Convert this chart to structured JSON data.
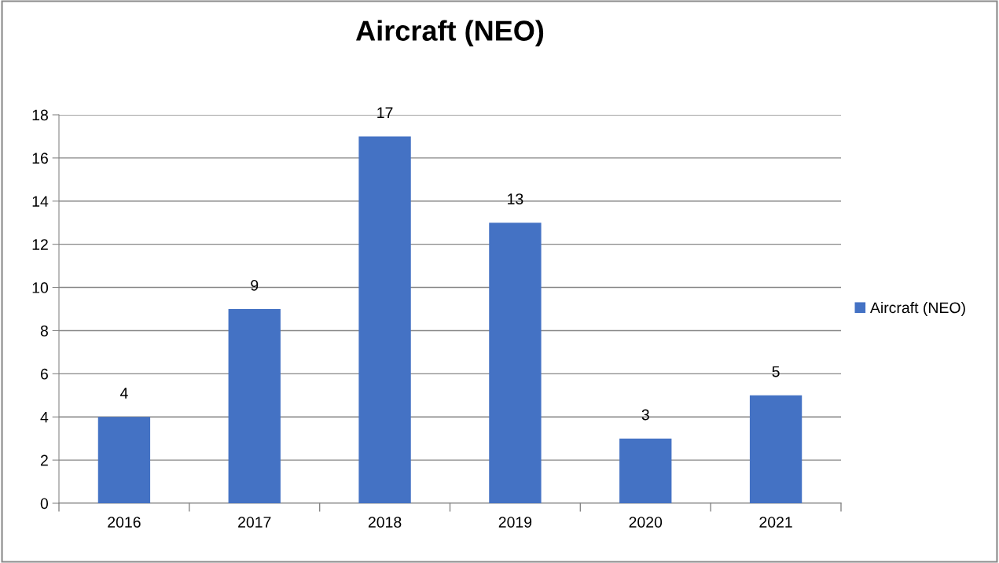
{
  "chart_data": {
    "type": "bar",
    "title": "Aircraft (NEO)",
    "categories": [
      "2016",
      "2017",
      "2018",
      "2019",
      "2020",
      "2021"
    ],
    "series": [
      {
        "name": "Aircraft (NEO)",
        "color": "#4472c4",
        "values": [
          4,
          9,
          17,
          13,
          3,
          5
        ]
      }
    ],
    "ylim": [
      0,
      18
    ],
    "yticks": [
      0,
      2,
      4,
      6,
      8,
      10,
      12,
      14,
      16,
      18
    ],
    "grid": "y",
    "legend": "right",
    "data_labels": true
  }
}
